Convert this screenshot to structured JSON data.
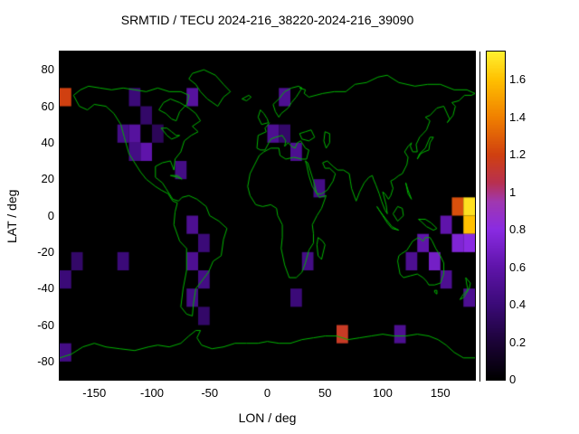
{
  "chart_data": {
    "type": "heatmap",
    "title": "SRMTID / TECU 2024-216_38220-2024-216_39090",
    "xlabel": "LON / deg",
    "ylabel": "LAT / deg",
    "xlim": [
      -180,
      180
    ],
    "ylim": [
      -90,
      90
    ],
    "xticks": [
      -150,
      -100,
      -50,
      0,
      50,
      100,
      150
    ],
    "yticks": [
      80,
      60,
      40,
      20,
      0,
      -20,
      -40,
      -60,
      -80
    ],
    "grid": false,
    "legend": "colorbar-right",
    "background": "#000000",
    "coastline_color": "#00b400",
    "cell_size_deg": 10,
    "colorbar": {
      "min": 0,
      "max": 1.75,
      "ticks": [
        0,
        0.2,
        0.4,
        0.6,
        0.8,
        1,
        1.2,
        1.4,
        1.6
      ]
    },
    "colormap_stops": [
      {
        "t": 0.0,
        "color": "#000000"
      },
      {
        "t": 0.2,
        "color": "#1c0338"
      },
      {
        "t": 0.4,
        "color": "#3b0a78"
      },
      {
        "t": 0.6,
        "color": "#5f14aa"
      },
      {
        "t": 0.8,
        "color": "#8a2be2"
      },
      {
        "t": 0.95,
        "color": "#a038b0"
      },
      {
        "t": 1.05,
        "color": "#b83050"
      },
      {
        "t": 1.2,
        "color": "#d04010"
      },
      {
        "t": 1.4,
        "color": "#f08000"
      },
      {
        "t": 1.6,
        "color": "#ffc000"
      },
      {
        "t": 1.75,
        "color": "#fff030"
      }
    ],
    "cells": [
      {
        "lon": -175,
        "lat": 65,
        "value": 1.2
      },
      {
        "lon": -115,
        "lat": 65,
        "value": 0.4
      },
      {
        "lon": -65,
        "lat": 65,
        "value": 0.55
      },
      {
        "lon": 15,
        "lat": 65,
        "value": 0.5
      },
      {
        "lon": -105,
        "lat": 55,
        "value": 0.35
      },
      {
        "lon": -125,
        "lat": 45,
        "value": 0.45
      },
      {
        "lon": -115,
        "lat": 45,
        "value": 0.55
      },
      {
        "lon": -95,
        "lat": 45,
        "value": 0.3
      },
      {
        "lon": 5,
        "lat": 45,
        "value": 0.5
      },
      {
        "lon": 15,
        "lat": 45,
        "value": 0.35
      },
      {
        "lon": -115,
        "lat": 35,
        "value": 0.45
      },
      {
        "lon": -105,
        "lat": 35,
        "value": 0.6
      },
      {
        "lon": 25,
        "lat": 35,
        "value": 0.5
      },
      {
        "lon": -75,
        "lat": 25,
        "value": 0.45
      },
      {
        "lon": 45,
        "lat": 15,
        "value": 0.45
      },
      {
        "lon": 165,
        "lat": 5,
        "value": 1.25
      },
      {
        "lon": 175,
        "lat": 5,
        "value": 1.7
      },
      {
        "lon": 175,
        "lat": -5,
        "value": 1.6
      },
      {
        "lon": 155,
        "lat": -5,
        "value": 0.6
      },
      {
        "lon": -65,
        "lat": -5,
        "value": 0.5
      },
      {
        "lon": -55,
        "lat": -15,
        "value": 0.4
      },
      {
        "lon": -165,
        "lat": -25,
        "value": 0.35
      },
      {
        "lon": -125,
        "lat": -25,
        "value": 0.4
      },
      {
        "lon": -65,
        "lat": -25,
        "value": 0.5
      },
      {
        "lon": 35,
        "lat": -25,
        "value": 0.45
      },
      {
        "lon": 125,
        "lat": -25,
        "value": 0.5
      },
      {
        "lon": 135,
        "lat": -15,
        "value": 0.6
      },
      {
        "lon": 145,
        "lat": -25,
        "value": 0.7
      },
      {
        "lon": 165,
        "lat": -15,
        "value": 0.75
      },
      {
        "lon": 175,
        "lat": -15,
        "value": 0.8
      },
      {
        "lon": -55,
        "lat": -35,
        "value": 0.45
      },
      {
        "lon": 155,
        "lat": -35,
        "value": 0.5
      },
      {
        "lon": -175,
        "lat": -35,
        "value": 0.4
      },
      {
        "lon": -65,
        "lat": -45,
        "value": 0.45
      },
      {
        "lon": 25,
        "lat": -45,
        "value": 0.4
      },
      {
        "lon": 175,
        "lat": -45,
        "value": 0.5
      },
      {
        "lon": -55,
        "lat": -55,
        "value": 0.35
      },
      {
        "lon": 65,
        "lat": -65,
        "value": 1.15
      },
      {
        "lon": 115,
        "lat": -65,
        "value": 0.5
      },
      {
        "lon": -175,
        "lat": -75,
        "value": 0.45
      }
    ]
  }
}
